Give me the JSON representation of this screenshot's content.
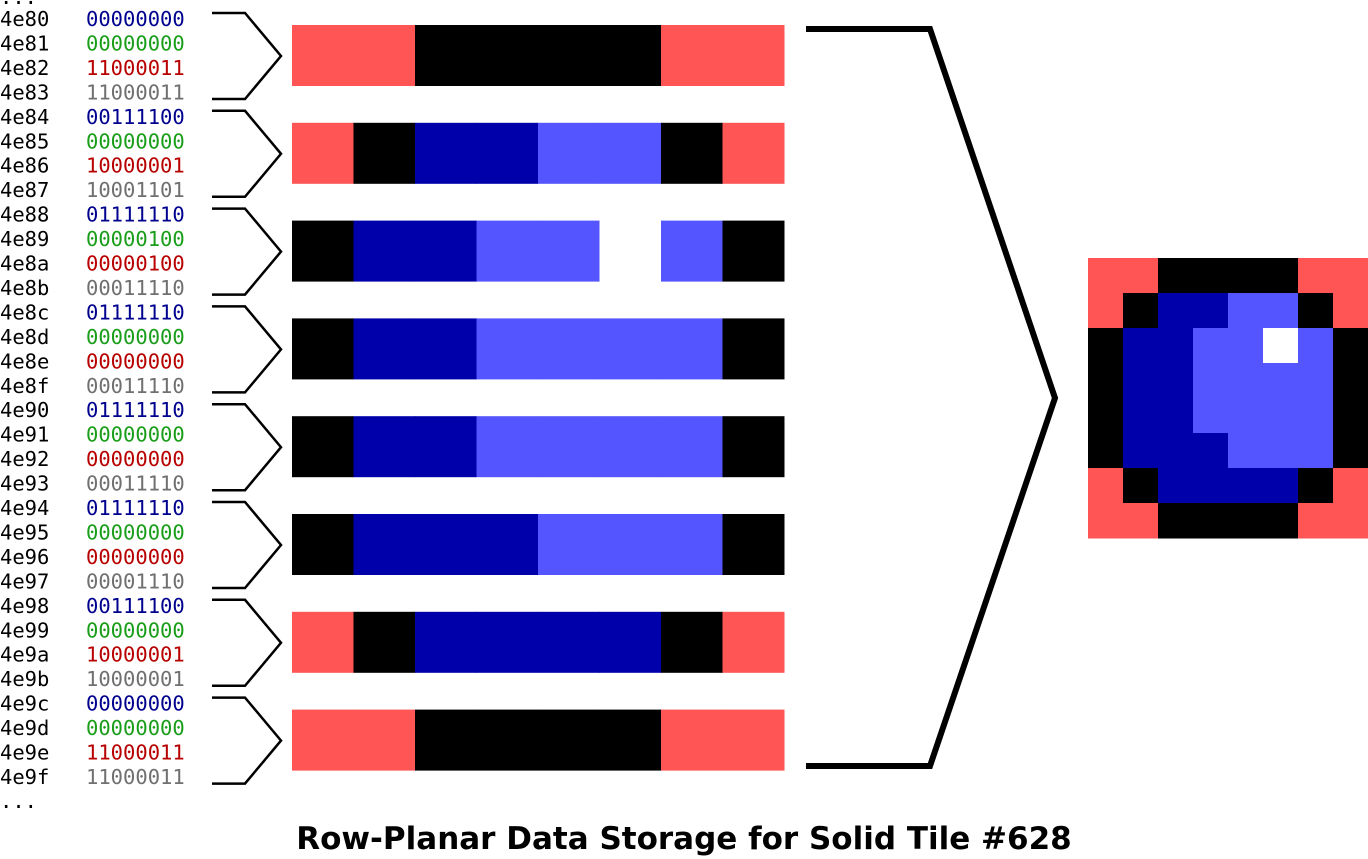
{
  "title": "Row-Planar Data Storage for Solid Tile #628",
  "ellipsis_top": "...",
  "ellipsis_bottom": "...",
  "plane_colors": [
    "#00008f",
    "#1a9e1a",
    "#b80000",
    "#707070"
  ],
  "palette": {
    "0": "#ff5555",
    "1": "#000000",
    "2": "#0000aa",
    "3": "#5555ff",
    "4": "#ffffff"
  },
  "rows": [
    {
      "lines": [
        {
          "addr": "4e80",
          "bits": "00000000"
        },
        {
          "addr": "4e81",
          "bits": "00000000"
        },
        {
          "addr": "4e82",
          "bits": "11000011"
        },
        {
          "addr": "4e83",
          "bits": "11000011"
        }
      ],
      "pixels": [
        0,
        0,
        1,
        1,
        1,
        1,
        0,
        0
      ]
    },
    {
      "lines": [
        {
          "addr": "4e84",
          "bits": "00111100"
        },
        {
          "addr": "4e85",
          "bits": "00000000"
        },
        {
          "addr": "4e86",
          "bits": "10000001"
        },
        {
          "addr": "4e87",
          "bits": "10001101"
        }
      ],
      "pixels": [
        0,
        1,
        2,
        2,
        3,
        3,
        1,
        0
      ]
    },
    {
      "lines": [
        {
          "addr": "4e88",
          "bits": "01111110"
        },
        {
          "addr": "4e89",
          "bits": "00000100"
        },
        {
          "addr": "4e8a",
          "bits": "00000100"
        },
        {
          "addr": "4e8b",
          "bits": "00011110"
        }
      ],
      "pixels": [
        1,
        2,
        2,
        3,
        3,
        4,
        3,
        1
      ]
    },
    {
      "lines": [
        {
          "addr": "4e8c",
          "bits": "01111110"
        },
        {
          "addr": "4e8d",
          "bits": "00000000"
        },
        {
          "addr": "4e8e",
          "bits": "00000000"
        },
        {
          "addr": "4e8f",
          "bits": "00011110"
        }
      ],
      "pixels": [
        1,
        2,
        2,
        3,
        3,
        3,
        3,
        1
      ]
    },
    {
      "lines": [
        {
          "addr": "4e90",
          "bits": "01111110"
        },
        {
          "addr": "4e91",
          "bits": "00000000"
        },
        {
          "addr": "4e92",
          "bits": "00000000"
        },
        {
          "addr": "4e93",
          "bits": "00011110"
        }
      ],
      "pixels": [
        1,
        2,
        2,
        3,
        3,
        3,
        3,
        1
      ]
    },
    {
      "lines": [
        {
          "addr": "4e94",
          "bits": "01111110"
        },
        {
          "addr": "4e95",
          "bits": "00000000"
        },
        {
          "addr": "4e96",
          "bits": "00000000"
        },
        {
          "addr": "4e97",
          "bits": "00001110"
        }
      ],
      "pixels": [
        1,
        2,
        2,
        2,
        3,
        3,
        3,
        1
      ]
    },
    {
      "lines": [
        {
          "addr": "4e98",
          "bits": "00111100"
        },
        {
          "addr": "4e99",
          "bits": "00000000"
        },
        {
          "addr": "4e9a",
          "bits": "10000001"
        },
        {
          "addr": "4e9b",
          "bits": "10000001"
        }
      ],
      "pixels": [
        0,
        1,
        2,
        2,
        2,
        2,
        1,
        0
      ]
    },
    {
      "lines": [
        {
          "addr": "4e9c",
          "bits": "00000000"
        },
        {
          "addr": "4e9d",
          "bits": "00000000"
        },
        {
          "addr": "4e9e",
          "bits": "11000011"
        },
        {
          "addr": "4e9f",
          "bits": "11000011"
        }
      ],
      "pixels": [
        0,
        0,
        1,
        1,
        1,
        1,
        0,
        0
      ]
    }
  ]
}
